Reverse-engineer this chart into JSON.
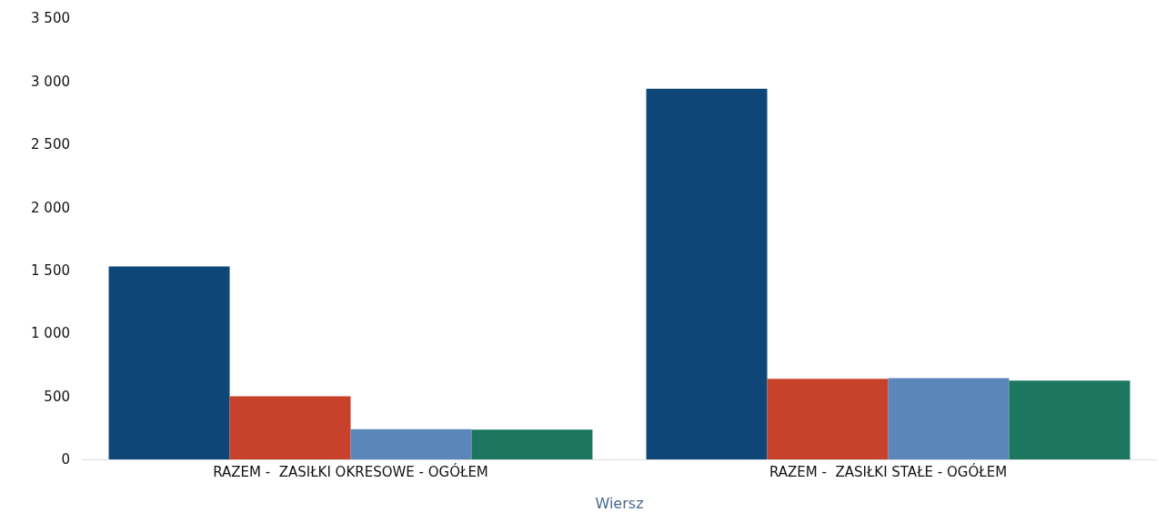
{
  "chart_data": {
    "type": "bar",
    "xlabel": "Wiersz",
    "categories": [
      "RAZEM -  ZASIŁKI OKRESOWE - OGÓŁEM",
      "RAZEM -  ZASIŁKI STAŁE - OGÓŁEM"
    ],
    "series": [
      {
        "color": "#0e4777",
        "values": [
          1530,
          2940
        ]
      },
      {
        "color": "#c8412a",
        "values": [
          500,
          640
        ]
      },
      {
        "color": "#5b86b9",
        "values": [
          240,
          645
        ]
      },
      {
        "color": "#1c7660",
        "values": [
          235,
          625
        ]
      }
    ],
    "ylim": [
      0,
      3500
    ],
    "yticks": [
      0,
      500,
      {
        "value": 1000,
        "label": "1 000"
      },
      {
        "value": 1500,
        "label": "1 500"
      },
      {
        "value": 2000,
        "label": "2 000"
      },
      {
        "value": 2500,
        "label": "2 500"
      },
      {
        "value": 3000,
        "label": "3 000"
      },
      {
        "value": 3500,
        "label": "3 500"
      }
    ],
    "grid": false
  }
}
